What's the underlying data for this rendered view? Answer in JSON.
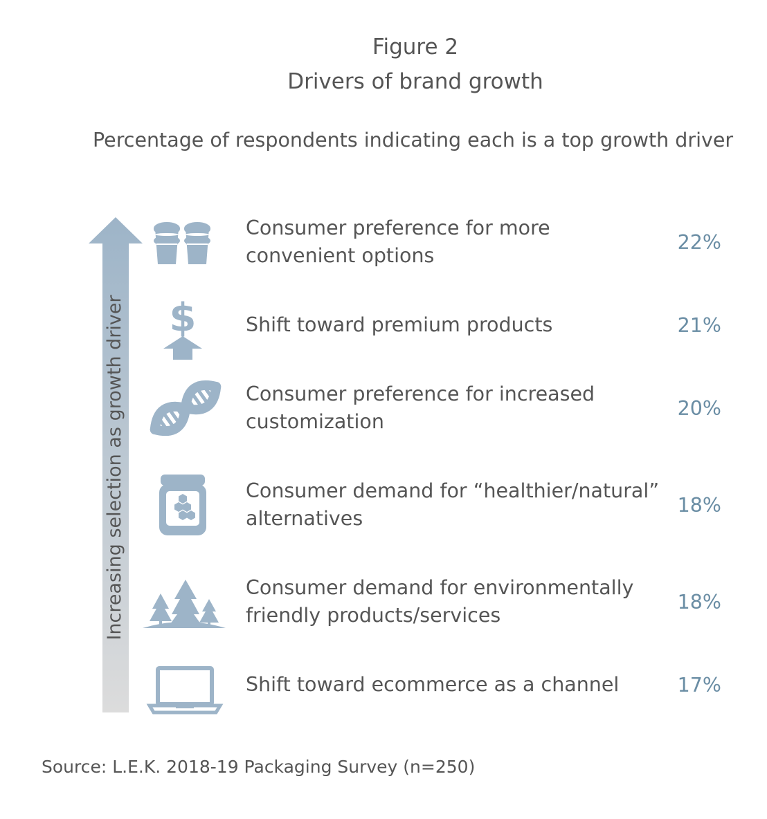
{
  "figure_label": "Figure 2",
  "title": "Drivers of brand growth",
  "subtitle": "Percentage of respondents indicating each is a top growth driver",
  "axis_label": "Increasing selection as growth driver",
  "source": "Source: L.E.K. 2018-19 Packaging Survey (n=250)",
  "colors": {
    "icon": "#9db4c8",
    "icon_detail": "#ffffff",
    "value_text": "#6a8da4",
    "arrow_blue": "#9db4c8",
    "arrow_gray": "#dcdcdc",
    "text": "#555555"
  },
  "chart_data": {
    "type": "table",
    "title": "Drivers of brand growth",
    "subtitle": "Percentage of respondents indicating each is a top growth driver",
    "axis_label": "Increasing selection as growth driver",
    "rows": [
      {
        "icon": "cups-icon",
        "label": "Consumer preference for more\nconvenient options",
        "value": 22,
        "value_label": "22%"
      },
      {
        "icon": "dollar-up-icon",
        "label": "Shift toward premium products",
        "value": 21,
        "value_label": "21%"
      },
      {
        "icon": "dna-icon",
        "label": "Consumer preference for increased\ncustomization",
        "value": 20,
        "value_label": "20%"
      },
      {
        "icon": "honey-jar-icon",
        "label": "Consumer demand for “healthier/natural”\nalternatives",
        "value": 18,
        "value_label": "18%"
      },
      {
        "icon": "trees-icon",
        "label": "Consumer demand for environmentally\nfriendly products/services",
        "value": 18,
        "value_label": "18%"
      },
      {
        "icon": "laptop-icon",
        "label": "Shift toward ecommerce as a channel",
        "value": 17,
        "value_label": "17%"
      }
    ]
  }
}
